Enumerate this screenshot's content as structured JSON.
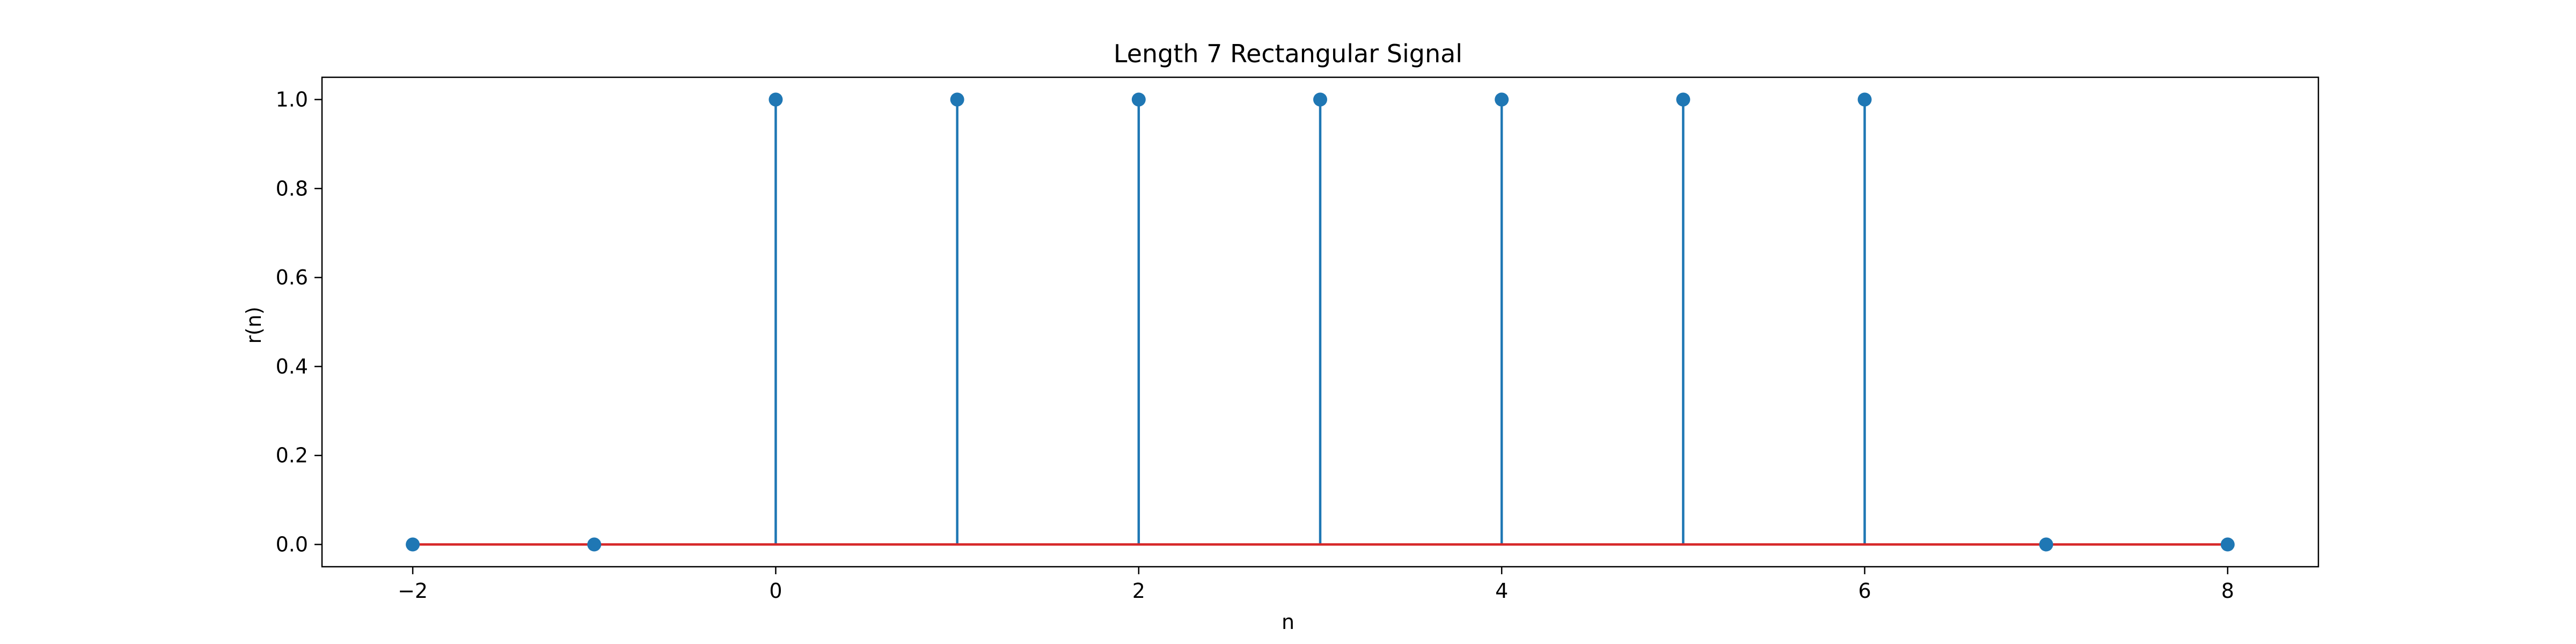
{
  "chart_data": {
    "type": "stem",
    "title": "Length 7 Rectangular Signal",
    "xlabel": "n",
    "ylabel": "r(n)",
    "x": [
      -2,
      -1,
      0,
      1,
      2,
      3,
      4,
      5,
      6,
      7,
      8
    ],
    "y": [
      0,
      0,
      1,
      1,
      1,
      1,
      1,
      1,
      1,
      0,
      0
    ],
    "xlim": [
      -2.5,
      8.5
    ],
    "ylim": [
      -0.05,
      1.05
    ],
    "xticks": [
      -2,
      0,
      2,
      4,
      6,
      8
    ],
    "xtick_labels": [
      "−2",
      "0",
      "2",
      "4",
      "6",
      "8"
    ],
    "yticks": [
      0.0,
      0.2,
      0.4,
      0.6,
      0.8,
      1.0
    ],
    "ytick_labels": [
      "0.0",
      "0.2",
      "0.4",
      "0.6",
      "0.8",
      "1.0"
    ],
    "grid": false,
    "colors": {
      "stem": "#1f77b4",
      "marker": "#1f77b4",
      "baseline": "#d62728"
    }
  }
}
